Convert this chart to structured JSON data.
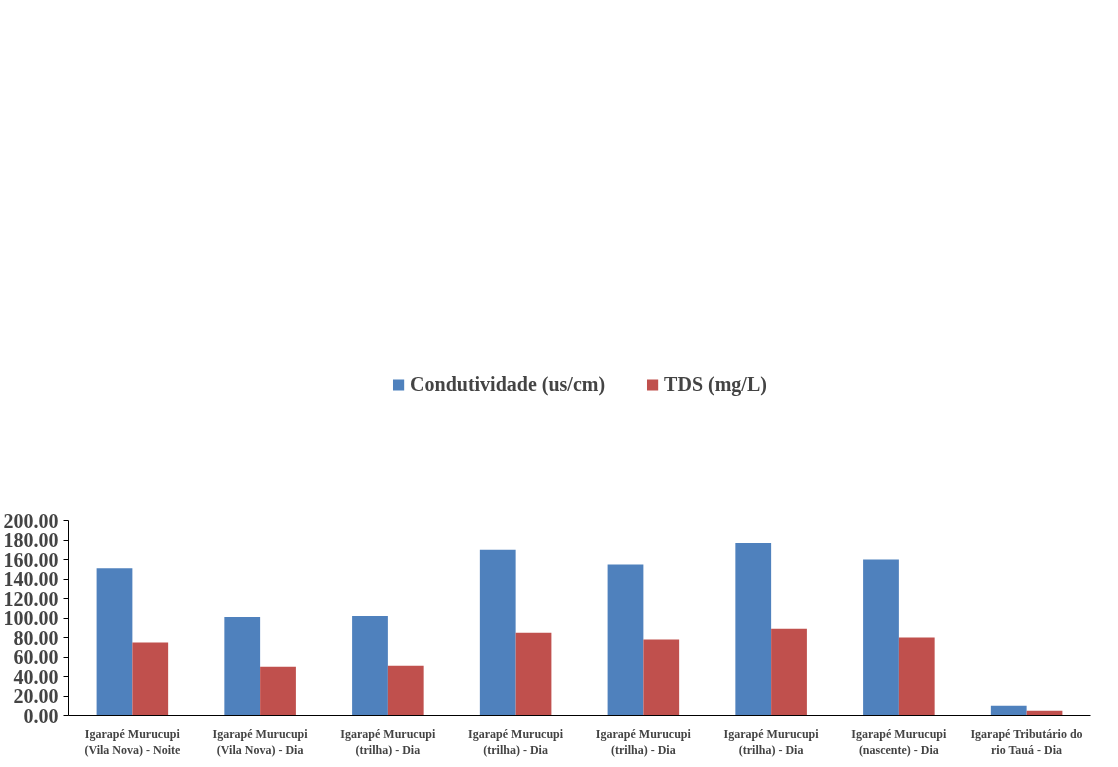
{
  "chart_data": {
    "type": "bar",
    "categories": [
      "Igarapé Murucupi\n(Vila Nova) - Noite",
      "Igarapé Murucupi\n(Vila Nova) - Dia",
      "Igarapé Murucupi\n(trilha) - Dia",
      "Igarapé Murucupi\n(trilha) - Dia",
      "Igarapé Murucupi\n(trilha) - Dia",
      "Igarapé Murucupi\n(trilha) - Dia",
      "Igarapé Murucupi\n(nascente) - Dia",
      "Igarapé Tributário do\nrio Tauá - Dia"
    ],
    "series": [
      {
        "name": "Condutividade (us/cm)",
        "color": "#4f81bd",
        "values": [
          151,
          101,
          102,
          170,
          155,
          177,
          160,
          10
        ]
      },
      {
        "name": "TDS (mg/L)",
        "color": "#c0504d",
        "values": [
          75,
          50,
          51,
          85,
          78,
          89,
          80,
          5
        ]
      }
    ],
    "ylim": [
      0,
      200
    ],
    "yticks": [
      {
        "value": 0,
        "label": "0.00"
      },
      {
        "value": 20,
        "label": "20.00"
      },
      {
        "value": 40,
        "label": "40.00"
      },
      {
        "value": 60,
        "label": "60.00"
      },
      {
        "value": 80,
        "label": "80.00"
      },
      {
        "value": 100,
        "label": "100.00"
      },
      {
        "value": 120,
        "label": "120.00"
      },
      {
        "value": 140,
        "label": "140.00"
      },
      {
        "value": 160,
        "label": "160.00"
      },
      {
        "value": 180,
        "label": "180.00"
      },
      {
        "value": 200,
        "label": "200.00"
      }
    ],
    "grid": false,
    "legend": "top"
  }
}
